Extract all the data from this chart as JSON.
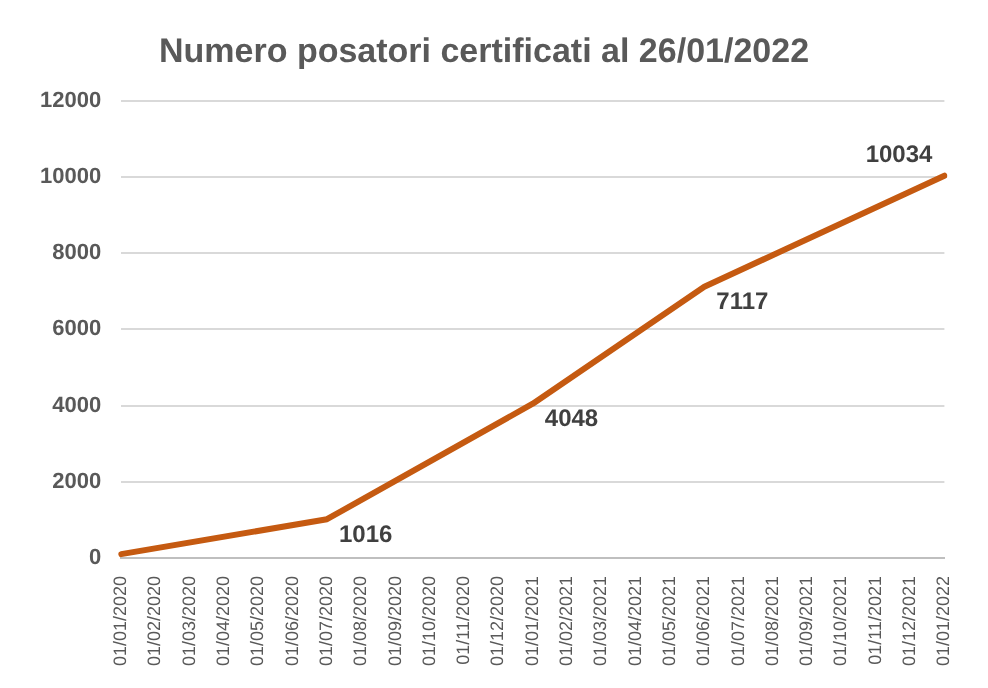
{
  "chart_data": {
    "type": "line",
    "title": "Numero posatori certificati al 26/01/2022",
    "categories": [
      "01/01/2020",
      "01/02/2020",
      "01/03/2020",
      "01/04/2020",
      "01/05/2020",
      "01/06/2020",
      "01/07/2020",
      "01/08/2020",
      "01/09/2020",
      "01/10/2020",
      "01/11/2020",
      "01/12/2020",
      "01/01/2021",
      "01/02/2021",
      "01/03/2021",
      "01/04/2021",
      "01/05/2021",
      "01/06/2021",
      "01/07/2021",
      "01/08/2021",
      "01/09/2021",
      "01/10/2021",
      "01/11/2021",
      "01/12/2021",
      "01/01/2022"
    ],
    "series": [
      {
        "color": "#c55a11",
        "values": [
          100,
          null,
          null,
          null,
          null,
          null,
          1016,
          null,
          null,
          null,
          null,
          null,
          4048,
          null,
          null,
          null,
          null,
          7117,
          null,
          null,
          null,
          null,
          null,
          null,
          10034
        ],
        "value_labels": [
          null,
          null,
          null,
          null,
          null,
          null,
          "1016",
          null,
          null,
          null,
          null,
          null,
          "4048",
          null,
          null,
          null,
          null,
          "7117",
          null,
          null,
          null,
          null,
          null,
          null,
          "10034"
        ]
      }
    ],
    "ylim": [
      0,
      12000
    ],
    "yticks": [
      0,
      2000,
      4000,
      6000,
      8000,
      10000,
      12000
    ],
    "grid": "y",
    "legend": false,
    "marker": "none",
    "line_style": "solid"
  }
}
